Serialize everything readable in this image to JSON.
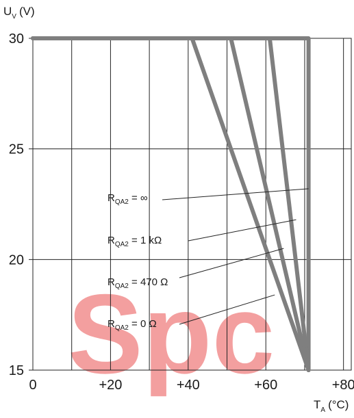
{
  "chart_data": {
    "type": "line",
    "ylabel": {
      "main": "U",
      "sub": "V",
      "unit": "(V)"
    },
    "xlabel": {
      "main": "T",
      "sub": "A",
      "unit": "(°C)"
    },
    "xlim": [
      0,
      82
    ],
    "ylim": [
      15,
      30
    ],
    "x_ticks": [
      {
        "value": 0,
        "label": "0"
      },
      {
        "value": 20,
        "label": "+20"
      },
      {
        "value": 40,
        "label": "+40"
      },
      {
        "value": 60,
        "label": "+60"
      },
      {
        "value": 80,
        "label": "+80"
      }
    ],
    "x_gridlines": [
      0,
      10,
      20,
      30,
      40,
      50,
      60,
      70,
      80
    ],
    "y_ticks": [
      {
        "value": 15,
        "label": "15"
      },
      {
        "value": 20,
        "label": "20"
      },
      {
        "value": 25,
        "label": "25"
      },
      {
        "value": 30,
        "label": "30"
      }
    ],
    "grid": true,
    "line_color": "#7f7f7f",
    "series": [
      {
        "name": "RQA2 = ∞",
        "x": [
          0,
          71,
          71
        ],
        "y": [
          30,
          30,
          15
        ]
      },
      {
        "name": "RQA2 = 1 kΩ",
        "x": [
          0,
          61,
          71
        ],
        "y": [
          30,
          30,
          15
        ]
      },
      {
        "name": "RQA2 = 470 Ω",
        "x": [
          0,
          51,
          71
        ],
        "y": [
          30,
          30,
          15
        ]
      },
      {
        "name": "RQA2 = 0 Ω",
        "x": [
          0,
          41,
          71
        ],
        "y": [
          30,
          30,
          15
        ]
      }
    ],
    "annotations": [
      {
        "main": "R",
        "sub": "QA2",
        "rest": " = ∞",
        "at": [
          71,
          23.2
        ]
      },
      {
        "main": "R",
        "sub": "QA2",
        "rest": " = 1 kΩ",
        "at": [
          67.8,
          21.8
        ]
      },
      {
        "main": "R",
        "sub": "QA2",
        "rest": " = 470 Ω",
        "at": [
          64.6,
          20.5
        ]
      },
      {
        "main": "R",
        "sub": "QA2",
        "rest": " = 0 Ω",
        "at": [
          62.3,
          18.4
        ]
      }
    ]
  },
  "watermark": {
    "text": "Spc",
    "color": "#f08080"
  }
}
